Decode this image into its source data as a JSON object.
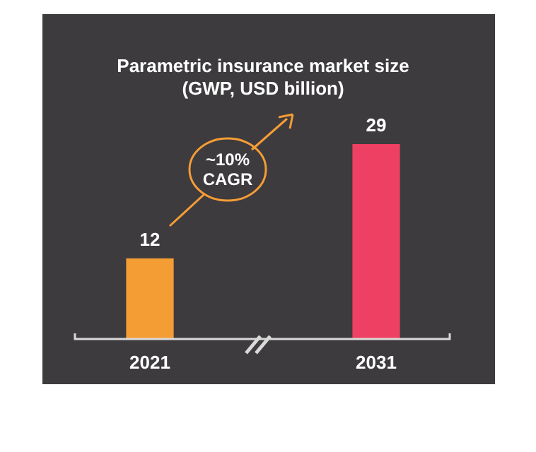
{
  "chart_data": {
    "type": "bar",
    "title": "Parametric insurance market size",
    "subtitle": "(GWP, USD billion)",
    "categories": [
      "2021",
      "2031"
    ],
    "values": [
      12,
      29
    ],
    "colors": [
      "#f59d35",
      "#ee4062"
    ],
    "data_labels": true,
    "annotations": [
      "~10% CAGR"
    ]
  }
}
